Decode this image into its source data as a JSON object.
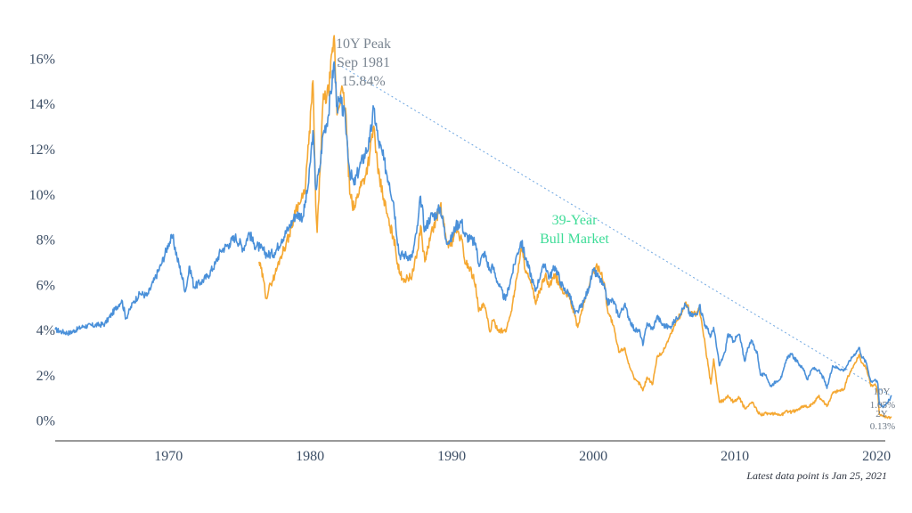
{
  "chart_data": {
    "type": "line",
    "title": "",
    "xlabel": "",
    "ylabel": "",
    "xlim": [
      1962,
      2021.5
    ],
    "ylim": [
      -0.8,
      17
    ],
    "x_ticks": [
      1970,
      1980,
      1990,
      2000,
      2010,
      2020
    ],
    "x_tick_labels": [
      "1970",
      "1980",
      "1990",
      "2000",
      "2010",
      "2020"
    ],
    "y_ticks": [
      0,
      2,
      4,
      6,
      8,
      10,
      12,
      14,
      16
    ],
    "y_tick_labels": [
      "0%",
      "2%",
      "4%",
      "6%",
      "8%",
      "10%",
      "12%",
      "14%",
      "16%"
    ],
    "grid": false,
    "series": [
      {
        "name": "10Y",
        "color": "#4a90d9",
        "points": [
          [
            1962.0,
            4.0
          ],
          [
            1962.5,
            3.9
          ],
          [
            1963.0,
            3.85
          ],
          [
            1964.0,
            4.15
          ],
          [
            1965.0,
            4.2
          ],
          [
            1965.5,
            4.25
          ],
          [
            1966.0,
            4.7
          ],
          [
            1966.7,
            5.3
          ],
          [
            1967.0,
            4.5
          ],
          [
            1967.5,
            5.2
          ],
          [
            1968.0,
            5.6
          ],
          [
            1968.5,
            5.5
          ],
          [
            1969.0,
            6.2
          ],
          [
            1969.5,
            6.9
          ],
          [
            1970.0,
            7.8
          ],
          [
            1970.3,
            8.1
          ],
          [
            1970.6,
            7.2
          ],
          [
            1970.9,
            6.5
          ],
          [
            1971.2,
            5.7
          ],
          [
            1971.5,
            6.8
          ],
          [
            1971.8,
            5.9
          ],
          [
            1972.3,
            6.1
          ],
          [
            1972.8,
            6.4
          ],
          [
            1973.3,
            6.9
          ],
          [
            1973.7,
            7.5
          ],
          [
            1974.3,
            7.8
          ],
          [
            1974.7,
            8.1
          ],
          [
            1975.3,
            7.6
          ],
          [
            1975.7,
            8.3
          ],
          [
            1976.0,
            7.8
          ],
          [
            1976.5,
            7.6
          ],
          [
            1977.0,
            7.3
          ],
          [
            1977.5,
            7.4
          ],
          [
            1978.0,
            8.0
          ],
          [
            1978.5,
            8.5
          ],
          [
            1979.0,
            9.1
          ],
          [
            1979.5,
            9.0
          ],
          [
            1979.9,
            10.5
          ],
          [
            1980.2,
            12.8
          ],
          [
            1980.4,
            10.2
          ],
          [
            1980.7,
            11.2
          ],
          [
            1980.9,
            12.6
          ],
          [
            1981.3,
            13.5
          ],
          [
            1981.7,
            15.84
          ],
          [
            1981.9,
            13.9
          ],
          [
            1982.2,
            14.0
          ],
          [
            1982.5,
            13.2
          ],
          [
            1982.8,
            11.0
          ],
          [
            1983.1,
            10.4
          ],
          [
            1983.5,
            11.2
          ],
          [
            1983.9,
            11.8
          ],
          [
            1984.2,
            12.3
          ],
          [
            1984.5,
            13.8
          ],
          [
            1984.8,
            12.4
          ],
          [
            1985.2,
            11.5
          ],
          [
            1985.6,
            10.5
          ],
          [
            1985.9,
            9.6
          ],
          [
            1986.3,
            7.3
          ],
          [
            1986.7,
            7.3
          ],
          [
            1987.2,
            7.2
          ],
          [
            1987.6,
            8.6
          ],
          [
            1987.8,
            9.9
          ],
          [
            1988.1,
            8.4
          ],
          [
            1988.5,
            9.0
          ],
          [
            1988.9,
            9.1
          ],
          [
            1989.2,
            9.4
          ],
          [
            1989.6,
            8.0
          ],
          [
            1989.9,
            7.9
          ],
          [
            1990.3,
            8.6
          ],
          [
            1990.7,
            8.8
          ],
          [
            1990.9,
            8.2
          ],
          [
            1991.3,
            8.0
          ],
          [
            1991.7,
            7.8
          ],
          [
            1991.9,
            6.9
          ],
          [
            1992.3,
            7.4
          ],
          [
            1992.7,
            6.6
          ],
          [
            1992.9,
            6.8
          ],
          [
            1993.3,
            6.0
          ],
          [
            1993.8,
            5.3
          ],
          [
            1994.2,
            6.3
          ],
          [
            1994.6,
            7.3
          ],
          [
            1994.9,
            7.9
          ],
          [
            1995.3,
            7.0
          ],
          [
            1995.7,
            6.2
          ],
          [
            1995.9,
            5.7
          ],
          [
            1996.3,
            6.5
          ],
          [
            1996.6,
            6.9
          ],
          [
            1996.9,
            6.3
          ],
          [
            1997.3,
            6.8
          ],
          [
            1997.7,
            6.1
          ],
          [
            1997.9,
            5.8
          ],
          [
            1998.3,
            5.6
          ],
          [
            1998.7,
            4.7
          ],
          [
            1998.9,
            4.8
          ],
          [
            1999.3,
            5.2
          ],
          [
            1999.7,
            5.9
          ],
          [
            2000.0,
            6.6
          ],
          [
            2000.4,
            6.3
          ],
          [
            2000.8,
            5.8
          ],
          [
            2001.0,
            5.2
          ],
          [
            2001.4,
            5.3
          ],
          [
            2001.8,
            4.6
          ],
          [
            2002.2,
            5.1
          ],
          [
            2002.6,
            4.4
          ],
          [
            2002.9,
            4.0
          ],
          [
            2003.3,
            3.9
          ],
          [
            2003.5,
            3.3
          ],
          [
            2003.8,
            4.3
          ],
          [
            2004.2,
            4.0
          ],
          [
            2004.5,
            4.6
          ],
          [
            2004.9,
            4.2
          ],
          [
            2005.4,
            4.1
          ],
          [
            2005.9,
            4.5
          ],
          [
            2006.3,
            4.9
          ],
          [
            2006.5,
            5.1
          ],
          [
            2006.9,
            4.6
          ],
          [
            2007.3,
            4.7
          ],
          [
            2007.5,
            5.1
          ],
          [
            2007.9,
            4.2
          ],
          [
            2008.3,
            3.7
          ],
          [
            2008.5,
            4.1
          ],
          [
            2008.9,
            2.4
          ],
          [
            2009.3,
            3.0
          ],
          [
            2009.5,
            3.8
          ],
          [
            2009.9,
            3.5
          ],
          [
            2010.3,
            3.8
          ],
          [
            2010.7,
            2.6
          ],
          [
            2010.9,
            3.2
          ],
          [
            2011.2,
            3.5
          ],
          [
            2011.6,
            2.9
          ],
          [
            2011.8,
            2.0
          ],
          [
            2012.2,
            2.0
          ],
          [
            2012.5,
            1.5
          ],
          [
            2012.9,
            1.7
          ],
          [
            2013.3,
            1.9
          ],
          [
            2013.7,
            2.8
          ],
          [
            2014.0,
            2.9
          ],
          [
            2014.5,
            2.5
          ],
          [
            2014.9,
            2.2
          ],
          [
            2015.1,
            1.8
          ],
          [
            2015.5,
            2.3
          ],
          [
            2015.9,
            2.2
          ],
          [
            2016.3,
            1.8
          ],
          [
            2016.5,
            1.4
          ],
          [
            2016.9,
            2.4
          ],
          [
            2017.3,
            2.3
          ],
          [
            2017.7,
            2.2
          ],
          [
            2017.9,
            2.4
          ],
          [
            2018.3,
            2.8
          ],
          [
            2018.8,
            3.2
          ],
          [
            2018.9,
            2.9
          ],
          [
            2019.3,
            2.5
          ],
          [
            2019.6,
            1.7
          ],
          [
            2019.9,
            1.8
          ],
          [
            2020.1,
            1.6
          ],
          [
            2020.2,
            0.7
          ],
          [
            2020.5,
            0.6
          ],
          [
            2020.9,
            0.9
          ],
          [
            2021.07,
            1.05
          ]
        ]
      },
      {
        "name": "2Y",
        "color": "#f5a832",
        "points": [
          [
            1976.4,
            7.0
          ],
          [
            1976.7,
            6.2
          ],
          [
            1976.9,
            5.4
          ],
          [
            1977.2,
            6.0
          ],
          [
            1977.5,
            6.4
          ],
          [
            1977.9,
            7.2
          ],
          [
            1978.3,
            7.8
          ],
          [
            1978.7,
            8.5
          ],
          [
            1979.0,
            9.4
          ],
          [
            1979.3,
            9.6
          ],
          [
            1979.6,
            10.0
          ],
          [
            1979.9,
            12.2
          ],
          [
            1980.2,
            15.0
          ],
          [
            1980.4,
            9.5
          ],
          [
            1980.5,
            8.3
          ],
          [
            1980.7,
            11.0
          ],
          [
            1980.9,
            14.0
          ],
          [
            1981.3,
            14.5
          ],
          [
            1981.7,
            17.0
          ],
          [
            1981.9,
            13.5
          ],
          [
            1982.2,
            14.6
          ],
          [
            1982.5,
            13.8
          ],
          [
            1982.8,
            10.0
          ],
          [
            1983.1,
            9.3
          ],
          [
            1983.5,
            10.3
          ],
          [
            1983.9,
            10.8
          ],
          [
            1984.2,
            11.7
          ],
          [
            1984.5,
            13.0
          ],
          [
            1984.8,
            10.9
          ],
          [
            1985.2,
            9.8
          ],
          [
            1985.6,
            8.6
          ],
          [
            1985.9,
            8.1
          ],
          [
            1986.3,
            6.5
          ],
          [
            1986.7,
            6.2
          ],
          [
            1987.2,
            6.4
          ],
          [
            1987.6,
            7.5
          ],
          [
            1987.8,
            8.6
          ],
          [
            1988.1,
            7.0
          ],
          [
            1988.5,
            8.1
          ],
          [
            1988.9,
            8.9
          ],
          [
            1989.2,
            9.5
          ],
          [
            1989.6,
            8.0
          ],
          [
            1989.9,
            7.7
          ],
          [
            1990.3,
            8.4
          ],
          [
            1990.7,
            8.0
          ],
          [
            1990.9,
            7.1
          ],
          [
            1991.3,
            6.7
          ],
          [
            1991.7,
            6.0
          ],
          [
            1991.9,
            4.8
          ],
          [
            1992.3,
            5.1
          ],
          [
            1992.7,
            3.9
          ],
          [
            1992.9,
            4.4
          ],
          [
            1993.3,
            4.0
          ],
          [
            1993.8,
            3.9
          ],
          [
            1994.2,
            4.8
          ],
          [
            1994.6,
            6.3
          ],
          [
            1994.9,
            7.6
          ],
          [
            1995.3,
            6.5
          ],
          [
            1995.7,
            5.8
          ],
          [
            1995.9,
            5.2
          ],
          [
            1996.3,
            5.8
          ],
          [
            1996.6,
            6.4
          ],
          [
            1996.9,
            5.9
          ],
          [
            1997.3,
            6.4
          ],
          [
            1997.7,
            5.9
          ],
          [
            1997.9,
            5.6
          ],
          [
            1998.3,
            5.5
          ],
          [
            1998.7,
            4.6
          ],
          [
            1998.9,
            4.1
          ],
          [
            1999.3,
            5.1
          ],
          [
            1999.7,
            5.9
          ],
          [
            2000.0,
            6.6
          ],
          [
            2000.4,
            6.8
          ],
          [
            2000.8,
            6.0
          ],
          [
            2001.0,
            4.9
          ],
          [
            2001.4,
            4.2
          ],
          [
            2001.8,
            3.0
          ],
          [
            2002.2,
            3.2
          ],
          [
            2002.6,
            2.3
          ],
          [
            2002.9,
            1.8
          ],
          [
            2003.3,
            1.6
          ],
          [
            2003.5,
            1.3
          ],
          [
            2003.8,
            1.9
          ],
          [
            2004.2,
            1.6
          ],
          [
            2004.5,
            2.8
          ],
          [
            2004.9,
            3.0
          ],
          [
            2005.4,
            3.7
          ],
          [
            2005.9,
            4.4
          ],
          [
            2006.3,
            4.8
          ],
          [
            2006.5,
            5.2
          ],
          [
            2006.9,
            4.7
          ],
          [
            2007.3,
            4.7
          ],
          [
            2007.5,
            4.9
          ],
          [
            2007.9,
            3.3
          ],
          [
            2008.3,
            1.6
          ],
          [
            2008.5,
            2.7
          ],
          [
            2008.9,
            0.8
          ],
          [
            2009.3,
            0.9
          ],
          [
            2009.5,
            1.1
          ],
          [
            2009.9,
            0.8
          ],
          [
            2010.3,
            1.0
          ],
          [
            2010.7,
            0.5
          ],
          [
            2010.9,
            0.6
          ],
          [
            2011.2,
            0.8
          ],
          [
            2011.6,
            0.4
          ],
          [
            2011.8,
            0.25
          ],
          [
            2012.2,
            0.3
          ],
          [
            2012.5,
            0.25
          ],
          [
            2012.9,
            0.27
          ],
          [
            2013.3,
            0.24
          ],
          [
            2013.7,
            0.4
          ],
          [
            2014.0,
            0.35
          ],
          [
            2014.5,
            0.5
          ],
          [
            2014.9,
            0.65
          ],
          [
            2015.1,
            0.55
          ],
          [
            2015.5,
            0.7
          ],
          [
            2015.9,
            1.05
          ],
          [
            2016.3,
            0.8
          ],
          [
            2016.5,
            0.6
          ],
          [
            2016.9,
            1.2
          ],
          [
            2017.3,
            1.3
          ],
          [
            2017.7,
            1.35
          ],
          [
            2017.9,
            1.8
          ],
          [
            2018.3,
            2.3
          ],
          [
            2018.8,
            2.9
          ],
          [
            2018.9,
            2.6
          ],
          [
            2019.3,
            2.3
          ],
          [
            2019.6,
            1.5
          ],
          [
            2019.9,
            1.6
          ],
          [
            2020.1,
            1.2
          ],
          [
            2020.2,
            0.25
          ],
          [
            2020.5,
            0.15
          ],
          [
            2020.9,
            0.14
          ],
          [
            2021.07,
            0.13
          ]
        ]
      }
    ],
    "trendline": {
      "from": [
        1981.7,
        15.84
      ],
      "to": [
        2021.07,
        1.05
      ],
      "color": "#4a90d9",
      "style": "dotted"
    },
    "annotations": [
      {
        "lines": [
          "10Y Peak",
          "Sep 1981",
          "15.84%"
        ],
        "color": "#7a8591"
      },
      {
        "lines": [
          "39-Year",
          "Bull Market"
        ],
        "color": "#3ddc97"
      }
    ],
    "end_labels": [
      {
        "series": "10Y",
        "label": "10Y",
        "value": "1.05%"
      },
      {
        "series": "2Y",
        "label": "2Y",
        "value": "0.13%"
      }
    ]
  },
  "footnote": "Latest data point is Jan 25, 2021"
}
